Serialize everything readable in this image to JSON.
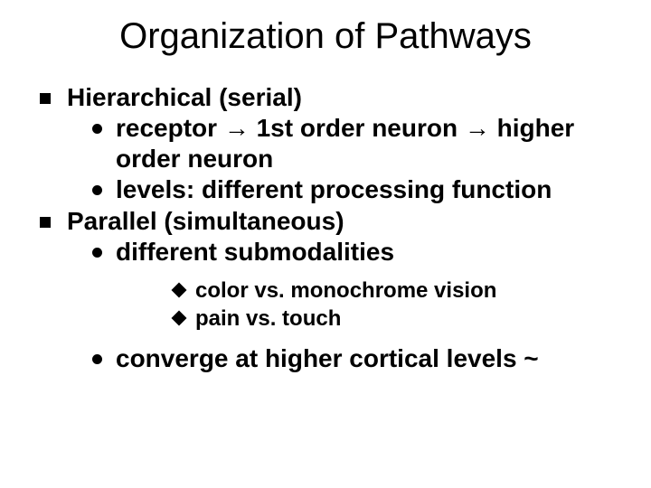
{
  "title": "Organization of Pathways",
  "colors": {
    "background": "#ffffff",
    "text": "#000000"
  },
  "typography": {
    "title_fontsize": 40,
    "body_fontsize": 28,
    "sub_fontsize": 24,
    "weight_title": 400,
    "weight_body": 700,
    "family": "Arial"
  },
  "bullets": {
    "level1": {
      "shape": "square",
      "size": 12,
      "color": "#000000"
    },
    "level2": {
      "shape": "circle",
      "size": 11,
      "color": "#000000"
    },
    "level3": {
      "shape": "diamond",
      "size": 12,
      "color": "#000000"
    }
  },
  "items": [
    {
      "label": "Hierarchical (serial)",
      "sub": [
        {
          "label": "receptor → 1st order neuron → higher order neuron"
        },
        {
          "label": "levels: different processing function"
        }
      ]
    },
    {
      "label": "Parallel (simultaneous)",
      "sub": [
        {
          "label": "different submodalities",
          "sub": [
            {
              "label": "color vs. monochrome vision"
            },
            {
              "label": "pain vs. touch"
            }
          ]
        },
        {
          "label": "converge at higher cortical levels ~"
        }
      ]
    }
  ]
}
